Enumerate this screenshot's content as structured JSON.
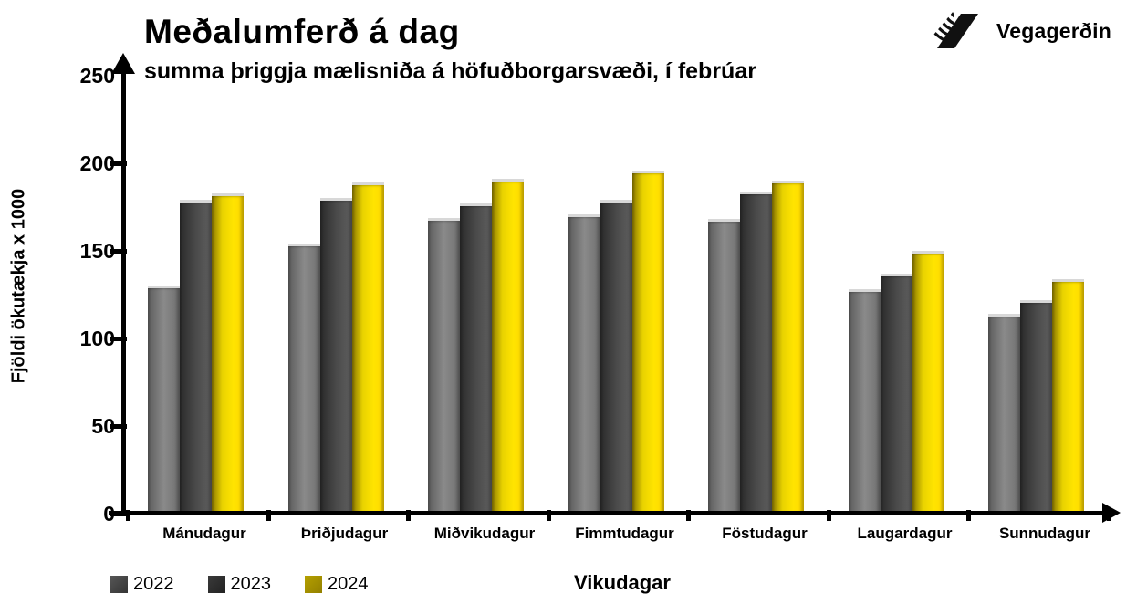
{
  "logo": {
    "text": "Vegagerðin"
  },
  "chart_data": {
    "type": "bar",
    "title": "Meðalumferð á dag",
    "subtitle": "summa þriggja mælisniða á höfuðborgarsvæði, í febrúar",
    "xlabel": "Vikudagar",
    "ylabel": "Fjöldi ökutækja x 1000",
    "ylim": [
      0,
      250
    ],
    "yticks": [
      0,
      50,
      100,
      150,
      200,
      250
    ],
    "grid": false,
    "legend_position": "bottom-left",
    "categories": [
      "Mánudagur",
      "Þriðjudagur",
      "Miðvikudagur",
      "Fimmtudagur",
      "Föstudagur",
      "Laugardagur",
      "Sunnudagur"
    ],
    "series": [
      {
        "name": "2022",
        "color": "#7f7f7f",
        "gradient": [
          "#5c5c5c",
          "#8a8a8a",
          "#6f6f6f"
        ],
        "legend_color": "#565656",
        "legend_dark": "#343434",
        "values": [
          130,
          154,
          169,
          171,
          168,
          128,
          114
        ]
      },
      {
        "name": "2023",
        "color": "#404040",
        "gradient": [
          "#2a2a2a",
          "#4a4a4a",
          "#606060"
        ],
        "legend_color": "#3a3a3a",
        "legend_dark": "#222222",
        "values": [
          179,
          180,
          177,
          179,
          184,
          137,
          122
        ]
      },
      {
        "name": "2024",
        "color": "#ffdf00",
        "gradient": [
          "#8a7800",
          "#e8d200",
          "#ffe400",
          "#ffd800"
        ],
        "legend_color": "#b5a000",
        "legend_dark": "#938000",
        "values": [
          183,
          189,
          191,
          196,
          190,
          150,
          134
        ]
      }
    ]
  }
}
